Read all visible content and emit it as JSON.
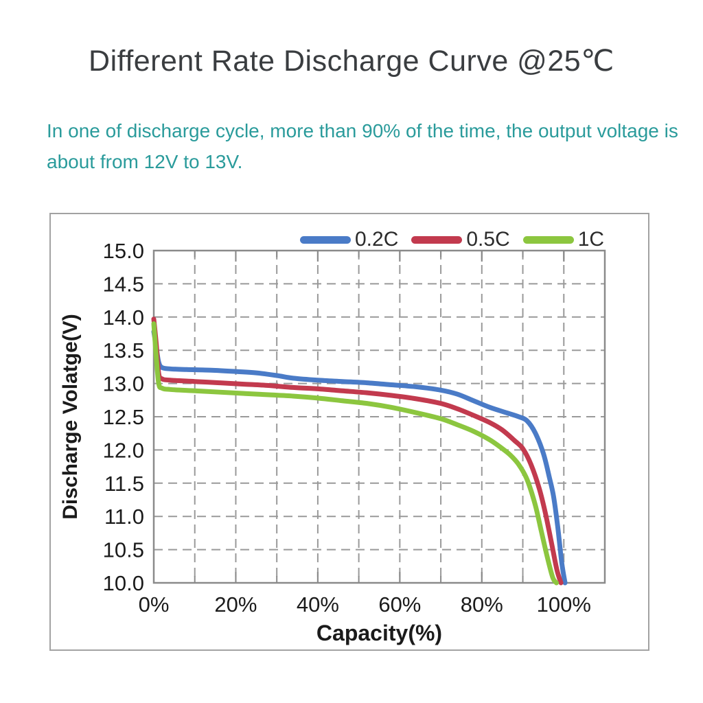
{
  "header": {
    "title": "Different Rate Discharge Curve @25℃",
    "subtitle": "In one of discharge cycle, more than 90% of the time, the output voltage is about from 12V to 13V."
  },
  "theme": {
    "title_color": "#3a3d40",
    "subtitle_color": "#2a9b9b",
    "card_border_color": "#a2a2a2"
  },
  "chart_data": {
    "type": "line",
    "xlabel": "Capacity(%)",
    "ylabel": "Discharge Volatge(V)",
    "xlim": [
      0,
      110
    ],
    "ylim": [
      10,
      15
    ],
    "grid": "dashed",
    "legend_position": "top",
    "x_tick_labels": [
      "0%",
      "20%",
      "40%",
      "60%",
      "80%",
      "100%"
    ],
    "x_tick_values": [
      0,
      20,
      40,
      60,
      80,
      100
    ],
    "x_grid_values": [
      10,
      20,
      30,
      40,
      50,
      60,
      70,
      80,
      90,
      100
    ],
    "y_tick_labels": [
      "15.0",
      "14.5",
      "14.0",
      "13.5",
      "13.0",
      "12.5",
      "12.0",
      "11.5",
      "11.0",
      "10.5",
      "10.0"
    ],
    "y_tick_values": [
      15,
      14.5,
      14,
      13.5,
      13,
      12.5,
      12,
      11.5,
      11,
      10.5,
      10
    ],
    "y_grid_values": [
      10.5,
      11,
      11.5,
      12,
      12.5,
      13,
      13.5,
      14,
      14.5
    ],
    "colors": {
      "grid": "#999999",
      "plot_border": "#8a8a8a",
      "tick_text": "#1b1b1b"
    },
    "series": [
      {
        "name": "0.2C",
        "color": "#4a7bc7",
        "points": [
          [
            0,
            13.78
          ],
          [
            0.6,
            13.55
          ],
          [
            1.2,
            13.32
          ],
          [
            2,
            13.24
          ],
          [
            4,
            13.22
          ],
          [
            8,
            13.21
          ],
          [
            14,
            13.2
          ],
          [
            20,
            13.18
          ],
          [
            25,
            13.16
          ],
          [
            30,
            13.12
          ],
          [
            34,
            13.08
          ],
          [
            40,
            13.05
          ],
          [
            46,
            13.03
          ],
          [
            52,
            13.01
          ],
          [
            58,
            12.98
          ],
          [
            64,
            12.95
          ],
          [
            70,
            12.9
          ],
          [
            74,
            12.84
          ],
          [
            78,
            12.74
          ],
          [
            82,
            12.64
          ],
          [
            86,
            12.56
          ],
          [
            89,
            12.5
          ],
          [
            91,
            12.44
          ],
          [
            93,
            12.26
          ],
          [
            95,
            11.95
          ],
          [
            96.5,
            11.58
          ],
          [
            97.5,
            11.3
          ],
          [
            98.5,
            10.85
          ],
          [
            99.5,
            10.3
          ],
          [
            100.3,
            10.0
          ]
        ]
      },
      {
        "name": "0.5C",
        "color": "#c23a4e",
        "points": [
          [
            0,
            13.97
          ],
          [
            0.6,
            13.6
          ],
          [
            1.2,
            13.15
          ],
          [
            2,
            13.07
          ],
          [
            4,
            13.05
          ],
          [
            10,
            13.03
          ],
          [
            16,
            13.01
          ],
          [
            22,
            12.99
          ],
          [
            28,
            12.97
          ],
          [
            34,
            12.94
          ],
          [
            40,
            12.92
          ],
          [
            46,
            12.89
          ],
          [
            52,
            12.86
          ],
          [
            58,
            12.82
          ],
          [
            64,
            12.77
          ],
          [
            70,
            12.7
          ],
          [
            74,
            12.62
          ],
          [
            78,
            12.52
          ],
          [
            82,
            12.41
          ],
          [
            85,
            12.3
          ],
          [
            88,
            12.14
          ],
          [
            90,
            12.02
          ],
          [
            92,
            11.78
          ],
          [
            94,
            11.42
          ],
          [
            95.5,
            11.05
          ],
          [
            97,
            10.6
          ],
          [
            98.3,
            10.2
          ],
          [
            99.3,
            10.0
          ]
        ]
      },
      {
        "name": "1C",
        "color": "#8cc63f",
        "points": [
          [
            0,
            13.9
          ],
          [
            0.6,
            13.4
          ],
          [
            1.2,
            13.0
          ],
          [
            2,
            12.93
          ],
          [
            4,
            12.91
          ],
          [
            10,
            12.89
          ],
          [
            16,
            12.87
          ],
          [
            22,
            12.85
          ],
          [
            28,
            12.83
          ],
          [
            34,
            12.81
          ],
          [
            40,
            12.78
          ],
          [
            46,
            12.74
          ],
          [
            52,
            12.7
          ],
          [
            58,
            12.64
          ],
          [
            64,
            12.56
          ],
          [
            70,
            12.47
          ],
          [
            74,
            12.38
          ],
          [
            78,
            12.28
          ],
          [
            82,
            12.15
          ],
          [
            85,
            12.02
          ],
          [
            87,
            11.92
          ],
          [
            89,
            11.78
          ],
          [
            91,
            11.56
          ],
          [
            93,
            11.18
          ],
          [
            94.5,
            10.78
          ],
          [
            96,
            10.38
          ],
          [
            97.3,
            10.08
          ],
          [
            98.2,
            10.0
          ]
        ]
      }
    ]
  }
}
